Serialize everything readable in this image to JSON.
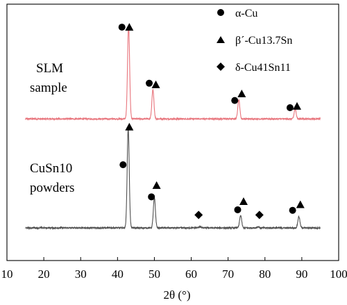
{
  "chart_data": {
    "type": "line",
    "title": "",
    "xlabel": "2θ (°)",
    "ylabel": "",
    "xlim": [
      10,
      100
    ],
    "xticks": [
      10,
      20,
      30,
      40,
      50,
      60,
      70,
      80,
      90,
      100
    ],
    "grid": false,
    "legend_position": "top-right",
    "legend": [
      {
        "marker": "circle",
        "label": "α-Cu"
      },
      {
        "marker": "triangle",
        "label": "β´-Cu13.7Sn"
      },
      {
        "marker": "diamond",
        "label": "δ-Cu41Sn11"
      }
    ],
    "series": [
      {
        "label_lines": [
          "SLM",
          "sample"
        ],
        "color": "#e8747c",
        "x_range": [
          15,
          95
        ],
        "baseline": 0.28,
        "peaks": [
          {
            "x": 43.0,
            "height": 9.8
          },
          {
            "x": 49.6,
            "height": 3.0
          },
          {
            "x": 72.9,
            "height": 2.0
          },
          {
            "x": 88.2,
            "height": 1.0
          }
        ],
        "markers": [
          {
            "marker": "circle",
            "x": 41.2,
            "y": 9.85
          },
          {
            "marker": "triangle",
            "x": 43.2,
            "y": 9.85
          },
          {
            "marker": "circle",
            "x": 48.6,
            "y": 4.0
          },
          {
            "marker": "triangle",
            "x": 50.4,
            "y": 3.85
          },
          {
            "marker": "circle",
            "x": 71.8,
            "y": 2.2
          },
          {
            "marker": "triangle",
            "x": 73.7,
            "y": 2.9
          },
          {
            "marker": "circle",
            "x": 86.8,
            "y": 1.45
          },
          {
            "marker": "triangle",
            "x": 88.7,
            "y": 1.6
          }
        ]
      },
      {
        "label_lines": [
          "CuSn10",
          "powders"
        ],
        "color": "#505050",
        "x_range": [
          15,
          95
        ],
        "baseline": 0.2,
        "peaks": [
          {
            "x": 42.9,
            "height": 9.6
          },
          {
            "x": 50.0,
            "height": 2.9
          },
          {
            "x": 62.3,
            "height": 0.12
          },
          {
            "x": 73.4,
            "height": 1.2
          },
          {
            "x": 78.1,
            "height": 0.12
          },
          {
            "x": 89.2,
            "height": 1.1
          }
        ],
        "markers": [
          {
            "marker": "circle",
            "x": 41.5,
            "y": 6.3
          },
          {
            "marker": "triangle",
            "x": 43.2,
            "y": 9.95
          },
          {
            "marker": "circle",
            "x": 49.2,
            "y": 3.2
          },
          {
            "marker": "triangle",
            "x": 50.6,
            "y": 4.3
          },
          {
            "marker": "diamond",
            "x": 62.0,
            "y": 1.45
          },
          {
            "marker": "circle",
            "x": 72.6,
            "y": 1.95
          },
          {
            "marker": "triangle",
            "x": 74.2,
            "y": 2.75
          },
          {
            "marker": "diamond",
            "x": 78.5,
            "y": 1.45
          },
          {
            "marker": "circle",
            "x": 87.5,
            "y": 1.9
          },
          {
            "marker": "triangle",
            "x": 89.6,
            "y": 2.45
          }
        ]
      }
    ]
  }
}
